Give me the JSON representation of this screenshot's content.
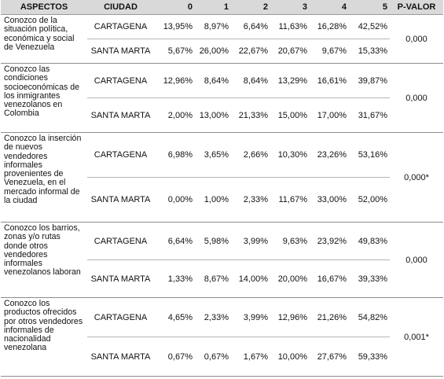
{
  "headers": [
    "ASPECTOS",
    "CIUDAD",
    "0",
    "1",
    "2",
    "3",
    "4",
    "5",
    "P-VALOR"
  ],
  "rows": [
    {
      "aspect": "Conozco de la situación política, económica y social de Venezuela",
      "pvalue": "0,000",
      "cities": [
        {
          "city": "CARTAGENA",
          "values": [
            "13,95%",
            "8,97%",
            "6,64%",
            "11,63%",
            "16,28%",
            "42,52%"
          ]
        },
        {
          "city": "SANTA MARTA",
          "values": [
            "5,67%",
            "26,00%",
            "22,67%",
            "20,67%",
            "9,67%",
            "15,33%"
          ]
        }
      ]
    },
    {
      "aspect": "Conozco las condiciones socioeconómicas de los inmigrantes venezolanos en Colombia",
      "pvalue": "0,000",
      "cities": [
        {
          "city": "CARTAGENA",
          "values": [
            "12,96%",
            "8,64%",
            "8,64%",
            "13,29%",
            "16,61%",
            "39,87%"
          ]
        },
        {
          "city": "SANTA MARTA",
          "values": [
            "2,00%",
            "13,00%",
            "21,33%",
            "15,00%",
            "17,00%",
            "31,67%"
          ]
        }
      ]
    },
    {
      "aspect": "Conozco la inserción de nuevos vendedores informales provenientes de Venezuela, en el mercado informal de la ciudad",
      "pvalue": "0,000*",
      "cities": [
        {
          "city": "CARTAGENA",
          "values": [
            "6,98%",
            "3,65%",
            "2,66%",
            "10,30%",
            "23,26%",
            "53,16%"
          ]
        },
        {
          "city": "SANTA MARTA",
          "values": [
            "0,00%",
            "1,00%",
            "2,33%",
            "11,67%",
            "33,00%",
            "52,00%"
          ]
        }
      ]
    },
    {
      "aspect": "Conozco los barrios, zonas y/o rutas donde otros vendedores informales venezolanos laboran",
      "pvalue": "0,000",
      "cities": [
        {
          "city": "CARTAGENA",
          "values": [
            "6,64%",
            "5,98%",
            "3,99%",
            "9,63%",
            "23,92%",
            "49,83%"
          ]
        },
        {
          "city": "SANTA MARTA",
          "values": [
            "1,33%",
            "8,67%",
            "14,00%",
            "20,00%",
            "16,67%",
            "39,33%"
          ]
        }
      ]
    },
    {
      "aspect": "Conozco los productos ofrecidos por otros vendedores informales de nacionalidad venezolana",
      "pvalue": "0,001*",
      "cities": [
        {
          "city": "CARTAGENA",
          "values": [
            "4,65%",
            "2,33%",
            "3,99%",
            "12,96%",
            "21,26%",
            "54,82%"
          ]
        },
        {
          "city": "SANTA MARTA",
          "values": [
            "0,67%",
            "0,67%",
            "1,67%",
            "10,00%",
            "27,67%",
            "59,33%"
          ]
        }
      ]
    }
  ]
}
